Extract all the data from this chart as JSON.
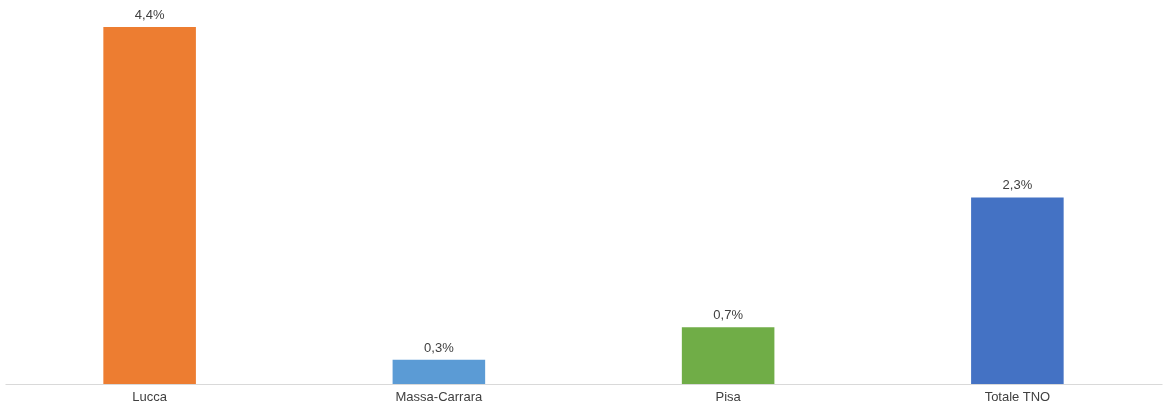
{
  "chart_data": {
    "type": "bar",
    "categories": [
      "Lucca",
      "Massa-Carrara",
      "Pisa",
      "Totale TNO"
    ],
    "values": [
      4.4,
      0.3,
      0.7,
      2.3
    ],
    "colors": [
      "#ed7d31",
      "#5b9bd5",
      "#70ad47",
      "#4472c4"
    ],
    "value_labels": [
      "4,4%",
      "0,3%",
      "0,7%",
      "2,3%"
    ]
  }
}
